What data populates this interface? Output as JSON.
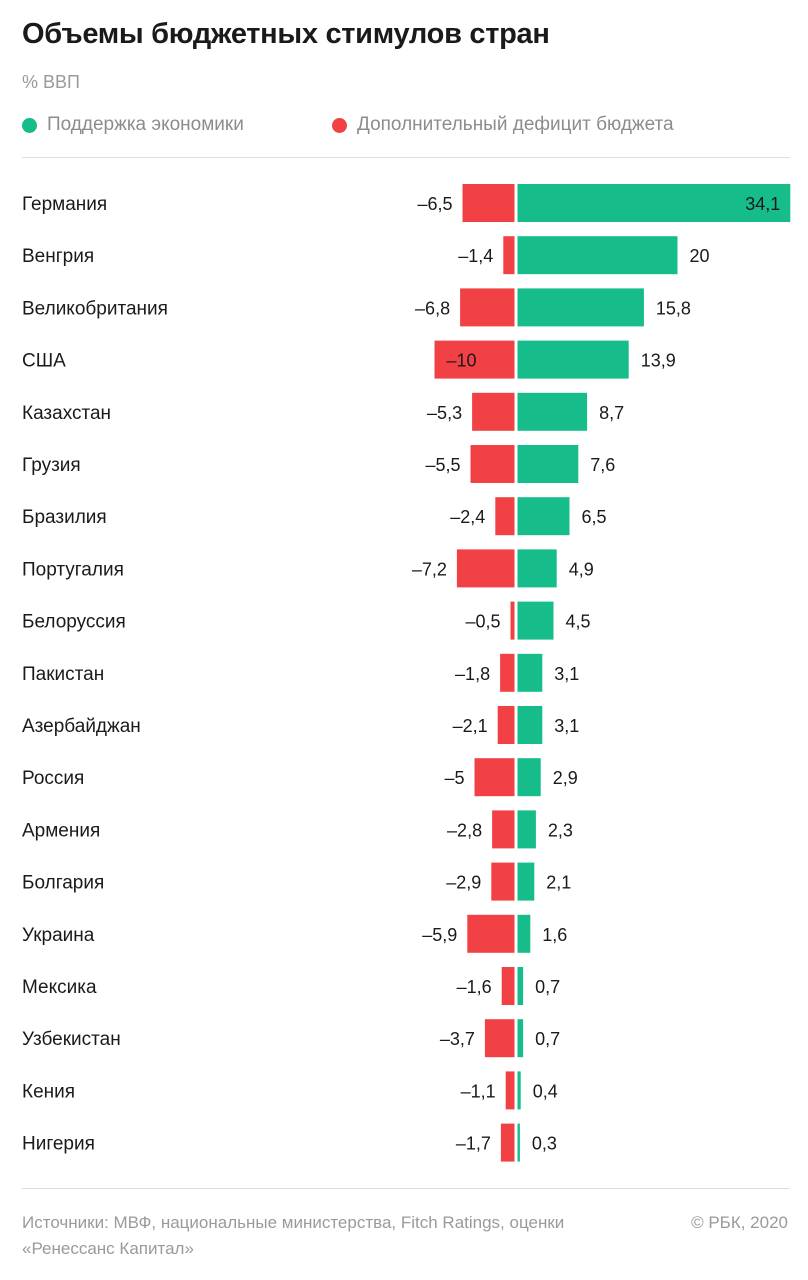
{
  "header": {
    "title": "Объемы бюджетных стимулов стран",
    "subtitle": "% ВВП"
  },
  "legend": {
    "support_label": "Поддержка экономики",
    "deficit_label": "Дополнительный дефицит бюджета"
  },
  "colors": {
    "support": "#16bd8a",
    "deficit": "#f24145",
    "text": "#1a1a1a",
    "muted": "#9a9a9a"
  },
  "chart_data": {
    "type": "bar",
    "orientation": "horizontal-diverging",
    "categories": [
      "Германия",
      "Венгрия",
      "Великобритания",
      "США",
      "Казахстан",
      "Грузия",
      "Бразилия",
      "Португалия",
      "Белоруссия",
      "Пакистан",
      "Азербайджан",
      "Россия",
      "Армения",
      "Болгария",
      "Украина",
      "Мексика",
      "Узбекистан",
      "Кения",
      "Нигерия"
    ],
    "series": [
      {
        "name": "Поддержка экономики",
        "values": [
          34.1,
          20,
          15.8,
          13.9,
          8.7,
          7.6,
          6.5,
          4.9,
          4.5,
          3.1,
          3.1,
          2.9,
          2.3,
          2.1,
          1.6,
          0.7,
          0.7,
          0.4,
          0.3
        ],
        "labels": [
          "34,1",
          "20",
          "15,8",
          "13,9",
          "8,7",
          "7,6",
          "6,5",
          "4,9",
          "4,5",
          "3,1",
          "3,1",
          "2,9",
          "2,3",
          "2,1",
          "1,6",
          "0,7",
          "0,7",
          "0,4",
          "0,3"
        ]
      },
      {
        "name": "Дополнительный дефицит бюджета",
        "values": [
          -6.5,
          -1.4,
          -6.8,
          -10,
          -5.3,
          -5.5,
          -2.4,
          -7.2,
          -0.5,
          -1.8,
          -2.1,
          -5,
          -2.8,
          -2.9,
          -5.9,
          -1.6,
          -3.7,
          -1.1,
          -1.7
        ],
        "labels": [
          "–6,5",
          "–1,4",
          "–6,8",
          "–10",
          "–5,3",
          "–5,5",
          "–2,4",
          "–7,2",
          "–0,5",
          "–1,8",
          "–2,1",
          "–5",
          "–2,8",
          "–2,9",
          "–5,9",
          "–1,6",
          "–3,7",
          "–1,1",
          "–1,7"
        ]
      }
    ],
    "unit": "% ВВП",
    "xlim": [
      -10,
      34.1
    ],
    "grid": false
  },
  "footer": {
    "source": "Источники: МВФ, национальные министерства, Fitch Ratings, оценки «Ренессанс Капитал»",
    "copyright": "© РБК, 2020"
  }
}
